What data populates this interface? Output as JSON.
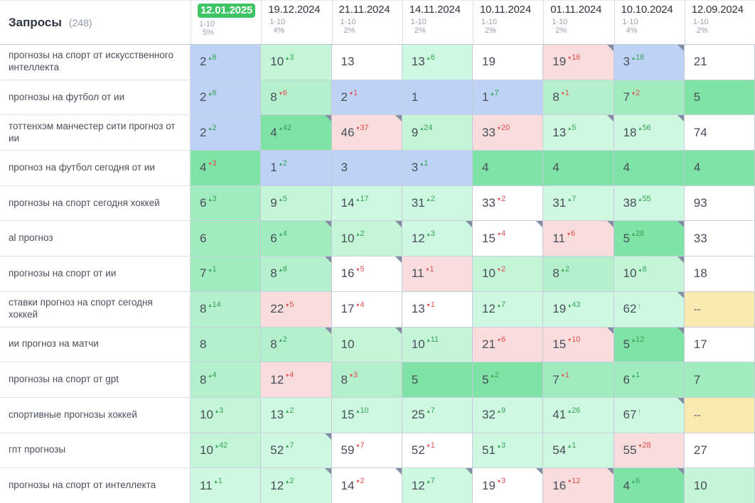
{
  "header": {
    "title": "Запросы",
    "count": "(248)"
  },
  "palette": {
    "blue": "#bed2f5",
    "g1": "#7ee3a5",
    "g2": "#a0ecbf",
    "g3": "#b4f0cb",
    "g4": "#c5f5d7",
    "g5": "#cef8df",
    "pink": "#f9dcdc",
    "white": "#ffffff",
    "yellow": "#f9eab0",
    "badge_green": "#3ec464",
    "change_up": "#35a458",
    "change_down": "#e14f4f"
  },
  "columns": [
    {
      "date": "12.01.2025",
      "range": "1-10",
      "pct": "5%",
      "highlighted": true
    },
    {
      "date": "19.12.2024",
      "range": "1-10",
      "pct": "4%",
      "highlighted": false
    },
    {
      "date": "21.11.2024",
      "range": "1-10",
      "pct": "2%",
      "highlighted": false
    },
    {
      "date": "14.11.2024",
      "range": "1-10",
      "pct": "2%",
      "highlighted": false
    },
    {
      "date": "10.11.2024",
      "range": "1-10",
      "pct": "2%",
      "highlighted": false
    },
    {
      "date": "01.11.2024",
      "range": "1-10",
      "pct": "2%",
      "highlighted": false
    },
    {
      "date": "10.10.2024",
      "range": "1-10",
      "pct": "4%",
      "highlighted": false
    },
    {
      "date": "12.09.2024",
      "range": "1-10",
      "pct": "2%",
      "highlighted": false
    }
  ],
  "rows": [
    {
      "query": "прогнозы на спорт от искусственного интеллекта",
      "cells": [
        {
          "v": "2",
          "chg": "8",
          "dir": "up",
          "bg": "blue"
        },
        {
          "v": "10",
          "chg": "3",
          "dir": "up",
          "bg": "g4"
        },
        {
          "v": "13",
          "chg": null,
          "dir": null,
          "bg": "white"
        },
        {
          "v": "13",
          "chg": "6",
          "dir": "up",
          "bg": "g5"
        },
        {
          "v": "19",
          "chg": null,
          "dir": null,
          "bg": "white"
        },
        {
          "v": "19",
          "chg": "16",
          "dir": "down",
          "bg": "pink",
          "corner": true
        },
        {
          "v": "3",
          "chg": "18",
          "dir": "up",
          "bg": "blue",
          "corner": true
        },
        {
          "v": "21",
          "chg": null,
          "dir": null,
          "bg": "white"
        }
      ]
    },
    {
      "query": "прогнозы на футбол от ии",
      "cells": [
        {
          "v": "2",
          "chg": "6",
          "dir": "up",
          "bg": "blue"
        },
        {
          "v": "8",
          "chg": "6",
          "dir": "down",
          "bg": "g3"
        },
        {
          "v": "2",
          "chg": "1",
          "dir": "down",
          "bg": "blue"
        },
        {
          "v": "1",
          "chg": null,
          "dir": null,
          "bg": "blue"
        },
        {
          "v": "1",
          "chg": "7",
          "dir": "up",
          "bg": "blue"
        },
        {
          "v": "8",
          "chg": "1",
          "dir": "down",
          "bg": "g3"
        },
        {
          "v": "7",
          "chg": "2",
          "dir": "down",
          "bg": "g2"
        },
        {
          "v": "5",
          "chg": null,
          "dir": null,
          "bg": "g1"
        }
      ]
    },
    {
      "query": "тоттенхэм манчестер сити прогноз от ии",
      "cells": [
        {
          "v": "2",
          "chg": "2",
          "dir": "up",
          "bg": "blue"
        },
        {
          "v": "4",
          "chg": "42",
          "dir": "up",
          "bg": "g1",
          "corner": true
        },
        {
          "v": "46",
          "chg": "37",
          "dir": "down",
          "bg": "pink",
          "corner": true
        },
        {
          "v": "9",
          "chg": "24",
          "dir": "up",
          "bg": "g4"
        },
        {
          "v": "33",
          "chg": "20",
          "dir": "down",
          "bg": "pink"
        },
        {
          "v": "13",
          "chg": "5",
          "dir": "up",
          "bg": "g5",
          "corner": true
        },
        {
          "v": "18",
          "chg": "56",
          "dir": "up",
          "bg": "g5",
          "corner": true
        },
        {
          "v": "74",
          "chg": null,
          "dir": null,
          "bg": "white"
        }
      ]
    },
    {
      "query": "прогноз на футбол сегодня от ии",
      "cells": [
        {
          "v": "4",
          "chg": "3",
          "dir": "down",
          "bg": "g1"
        },
        {
          "v": "1",
          "chg": "2",
          "dir": "up",
          "bg": "blue"
        },
        {
          "v": "3",
          "chg": null,
          "dir": null,
          "bg": "blue"
        },
        {
          "v": "3",
          "chg": "1",
          "dir": "up",
          "bg": "blue"
        },
        {
          "v": "4",
          "chg": null,
          "dir": null,
          "bg": "g1"
        },
        {
          "v": "4",
          "chg": null,
          "dir": null,
          "bg": "g1"
        },
        {
          "v": "4",
          "chg": null,
          "dir": null,
          "bg": "g1"
        },
        {
          "v": "4",
          "chg": null,
          "dir": null,
          "bg": "g1"
        }
      ]
    },
    {
      "query": "прогнозы на спорт сегодня хоккей",
      "cells": [
        {
          "v": "6",
          "chg": "3",
          "dir": "up",
          "bg": "g2"
        },
        {
          "v": "9",
          "chg": "5",
          "dir": "up",
          "bg": "g4"
        },
        {
          "v": "14",
          "chg": "17",
          "dir": "up",
          "bg": "g5"
        },
        {
          "v": "31",
          "chg": "2",
          "dir": "up",
          "bg": "g5"
        },
        {
          "v": "33",
          "chg": "2",
          "dir": "down",
          "bg": "white"
        },
        {
          "v": "31",
          "chg": "7",
          "dir": "up",
          "bg": "g5"
        },
        {
          "v": "38",
          "chg": "55",
          "dir": "up",
          "bg": "g5"
        },
        {
          "v": "93",
          "chg": null,
          "dir": null,
          "bg": "white"
        }
      ]
    },
    {
      "query": "al прогноз",
      "cells": [
        {
          "v": "6",
          "chg": null,
          "dir": null,
          "bg": "g2"
        },
        {
          "v": "6",
          "chg": "4",
          "dir": "up",
          "bg": "g2",
          "corner": true
        },
        {
          "v": "10",
          "chg": "2",
          "dir": "up",
          "bg": "g4",
          "corner": true
        },
        {
          "v": "12",
          "chg": "3",
          "dir": "up",
          "bg": "g5",
          "corner": true
        },
        {
          "v": "15",
          "chg": "4",
          "dir": "down",
          "bg": "white",
          "corner": true
        },
        {
          "v": "11",
          "chg": "6",
          "dir": "down",
          "bg": "pink",
          "corner": true
        },
        {
          "v": "5",
          "chg": "28",
          "dir": "up",
          "bg": "g1",
          "corner": true
        },
        {
          "v": "33",
          "chg": null,
          "dir": null,
          "bg": "white"
        }
      ]
    },
    {
      "query": "прогнозы на спорт от ии",
      "cells": [
        {
          "v": "7",
          "chg": "1",
          "dir": "up",
          "bg": "g2"
        },
        {
          "v": "8",
          "chg": "8",
          "dir": "up",
          "bg": "g3",
          "corner": true
        },
        {
          "v": "16",
          "chg": "5",
          "dir": "down",
          "bg": "white",
          "corner": true
        },
        {
          "v": "11",
          "chg": "1",
          "dir": "down",
          "bg": "pink"
        },
        {
          "v": "10",
          "chg": "2",
          "dir": "down",
          "bg": "g4"
        },
        {
          "v": "8",
          "chg": "2",
          "dir": "up",
          "bg": "g3"
        },
        {
          "v": "10",
          "chg": "8",
          "dir": "up",
          "bg": "g4",
          "corner": true
        },
        {
          "v": "18",
          "chg": null,
          "dir": null,
          "bg": "white"
        }
      ]
    },
    {
      "query": "ставки прогноз на спорт сегодня хоккей",
      "cells": [
        {
          "v": "8",
          "chg": "14",
          "dir": "up",
          "bg": "g3"
        },
        {
          "v": "22",
          "chg": "5",
          "dir": "down",
          "bg": "pink"
        },
        {
          "v": "17",
          "chg": "4",
          "dir": "down",
          "bg": "white"
        },
        {
          "v": "13",
          "chg": "1",
          "dir": "down",
          "bg": "white"
        },
        {
          "v": "12",
          "chg": "7",
          "dir": "up",
          "bg": "g5"
        },
        {
          "v": "19",
          "chg": "43",
          "dir": "up",
          "bg": "g5"
        },
        {
          "v": "62",
          "chg": "",
          "dir": "arrow",
          "bg": "g5",
          "corner": true
        },
        {
          "v": "--",
          "chg": null,
          "dir": null,
          "bg": "yellow"
        }
      ]
    },
    {
      "query": "ии прогноз на матчи",
      "cells": [
        {
          "v": "8",
          "chg": null,
          "dir": null,
          "bg": "g3"
        },
        {
          "v": "8",
          "chg": "2",
          "dir": "up",
          "bg": "g3",
          "corner": true
        },
        {
          "v": "10",
          "chg": null,
          "dir": null,
          "bg": "g4",
          "corner": true
        },
        {
          "v": "10",
          "chg": "11",
          "dir": "up",
          "bg": "g4"
        },
        {
          "v": "21",
          "chg": "6",
          "dir": "down",
          "bg": "pink"
        },
        {
          "v": "15",
          "chg": "10",
          "dir": "down",
          "bg": "pink",
          "corner": true
        },
        {
          "v": "5",
          "chg": "12",
          "dir": "up",
          "bg": "g1",
          "corner": true
        },
        {
          "v": "17",
          "chg": null,
          "dir": null,
          "bg": "white"
        }
      ]
    },
    {
      "query": "прогнозы на спорт от gpt",
      "cells": [
        {
          "v": "8",
          "chg": "4",
          "dir": "up",
          "bg": "g3"
        },
        {
          "v": "12",
          "chg": "4",
          "dir": "down",
          "bg": "pink"
        },
        {
          "v": "8",
          "chg": "3",
          "dir": "down",
          "bg": "g3"
        },
        {
          "v": "5",
          "chg": null,
          "dir": null,
          "bg": "g1"
        },
        {
          "v": "5",
          "chg": "2",
          "dir": "up",
          "bg": "g1"
        },
        {
          "v": "7",
          "chg": "1",
          "dir": "down",
          "bg": "g2"
        },
        {
          "v": "6",
          "chg": "1",
          "dir": "up",
          "bg": "g2"
        },
        {
          "v": "7",
          "chg": null,
          "dir": null,
          "bg": "g2"
        }
      ]
    },
    {
      "query": "спортивные прогнозы хоккей",
      "cells": [
        {
          "v": "10",
          "chg": "3",
          "dir": "up",
          "bg": "g4"
        },
        {
          "v": "13",
          "chg": "2",
          "dir": "up",
          "bg": "g5"
        },
        {
          "v": "15",
          "chg": "10",
          "dir": "up",
          "bg": "g5"
        },
        {
          "v": "25",
          "chg": "7",
          "dir": "up",
          "bg": "g5"
        },
        {
          "v": "32",
          "chg": "9",
          "dir": "up",
          "bg": "g5"
        },
        {
          "v": "41",
          "chg": "26",
          "dir": "up",
          "bg": "g5"
        },
        {
          "v": "67",
          "chg": "",
          "dir": "arrow",
          "bg": "g5",
          "corner": true
        },
        {
          "v": "--",
          "chg": null,
          "dir": null,
          "bg": "yellow"
        }
      ]
    },
    {
      "query": "гпт прогнозы",
      "cells": [
        {
          "v": "10",
          "chg": "42",
          "dir": "up",
          "bg": "g4"
        },
        {
          "v": "52",
          "chg": "7",
          "dir": "up",
          "bg": "g5",
          "corner": true
        },
        {
          "v": "59",
          "chg": "7",
          "dir": "down",
          "bg": "white"
        },
        {
          "v": "52",
          "chg": "1",
          "dir": "down",
          "bg": "white"
        },
        {
          "v": "51",
          "chg": "3",
          "dir": "up",
          "bg": "g5"
        },
        {
          "v": "54",
          "chg": "1",
          "dir": "up",
          "bg": "g5"
        },
        {
          "v": "55",
          "chg": "28",
          "dir": "down",
          "bg": "pink"
        },
        {
          "v": "27",
          "chg": null,
          "dir": null,
          "bg": "white"
        }
      ]
    },
    {
      "query": "прогнозы на спорт от интеллекта",
      "cells": [
        {
          "v": "11",
          "chg": "1",
          "dir": "up",
          "bg": "g5"
        },
        {
          "v": "12",
          "chg": "2",
          "dir": "up",
          "bg": "g5",
          "corner": true
        },
        {
          "v": "14",
          "chg": "2",
          "dir": "down",
          "bg": "white",
          "corner": true
        },
        {
          "v": "12",
          "chg": "7",
          "dir": "up",
          "bg": "g5",
          "corner": true
        },
        {
          "v": "19",
          "chg": "3",
          "dir": "down",
          "bg": "white",
          "corner": true
        },
        {
          "v": "16",
          "chg": "12",
          "dir": "down",
          "bg": "pink",
          "corner": true
        },
        {
          "v": "4",
          "chg": "6",
          "dir": "up",
          "bg": "g1",
          "corner": true
        },
        {
          "v": "10",
          "chg": null,
          "dir": null,
          "bg": "g4"
        }
      ]
    }
  ]
}
